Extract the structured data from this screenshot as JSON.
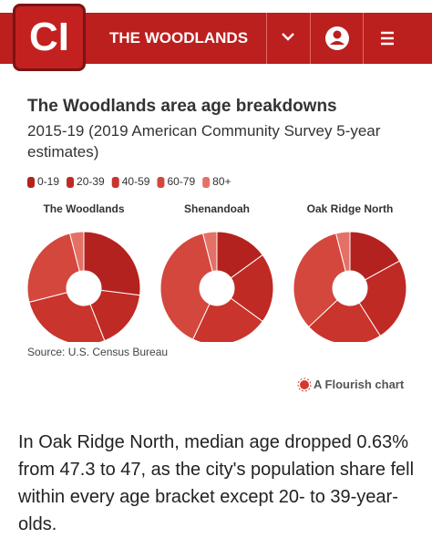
{
  "header": {
    "logo": "CI",
    "section": "THE WOODLANDS"
  },
  "figure": {
    "title": "The Woodlands area age breakdowns",
    "subtitle": "2015-19 (2019 American Community Survey 5-year estimates)",
    "source": "Source: U.S. Census Bureau",
    "credit": "A Flourish chart"
  },
  "chart_data": [
    {
      "type": "pie",
      "title": "The Woodlands",
      "categories": [
        "0-19",
        "20-39",
        "40-59",
        "60-79",
        "80+"
      ],
      "values": [
        27,
        17,
        27,
        25,
        4
      ],
      "colors": [
        "#b3221e",
        "#c02a24",
        "#c9342c",
        "#d4473d",
        "#e57166"
      ]
    },
    {
      "type": "pie",
      "title": "Shenandoah",
      "categories": [
        "0-19",
        "20-39",
        "40-59",
        "60-79",
        "80+"
      ],
      "values": [
        15,
        20,
        22,
        39,
        4
      ],
      "colors": [
        "#b3221e",
        "#c02a24",
        "#c9342c",
        "#d4473d",
        "#e57166"
      ]
    },
    {
      "type": "pie",
      "title": "Oak Ridge North",
      "categories": [
        "0-19",
        "20-39",
        "40-59",
        "60-79",
        "80+"
      ],
      "values": [
        17,
        24,
        22,
        33,
        4
      ],
      "colors": [
        "#b3221e",
        "#c02a24",
        "#c9342c",
        "#d4473d",
        "#e57166"
      ]
    }
  ],
  "article": {
    "paragraph": "In Oak Ridge North, median age dropped 0.63% from 47.3 to 47, as the city's population share fell within every age bracket except 20- to 39-year-olds."
  }
}
